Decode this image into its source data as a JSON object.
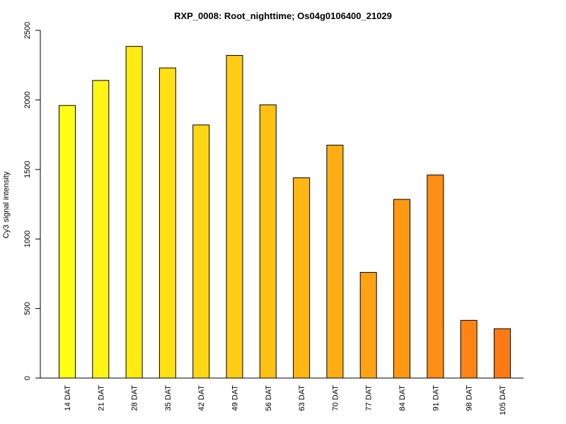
{
  "chart_data": {
    "type": "bar",
    "title": "RXP_0008: Root_nighttime; Os04g0106400_21029",
    "xlabel": "",
    "ylabel": "Cy3  signal intensity",
    "ylim": [
      0,
      2500
    ],
    "yticks": [
      0,
      500,
      1000,
      1500,
      2000,
      2500
    ],
    "categories": [
      "14 DAT",
      "21 DAT",
      "28 DAT",
      "35 DAT",
      "42 DAT",
      "49 DAT",
      "56 DAT",
      "63 DAT",
      "70 DAT",
      "77 DAT",
      "84 DAT",
      "91 DAT",
      "98 DAT",
      "105 DAT"
    ],
    "values": [
      1960,
      2140,
      2385,
      2230,
      1820,
      2320,
      1965,
      1440,
      1675,
      760,
      1285,
      1460,
      415,
      355
    ],
    "colors": [
      "#FFFF14",
      "#FFF514",
      "#FFEA14",
      "#FFE014",
      "#FFD614",
      "#FFCC14",
      "#FFC114",
      "#FFB714",
      "#FFAD14",
      "#FFA314",
      "#FF9814",
      "#FF8E14",
      "#FF8414",
      "#FF7A14"
    ],
    "grid": false,
    "legend": "none"
  }
}
